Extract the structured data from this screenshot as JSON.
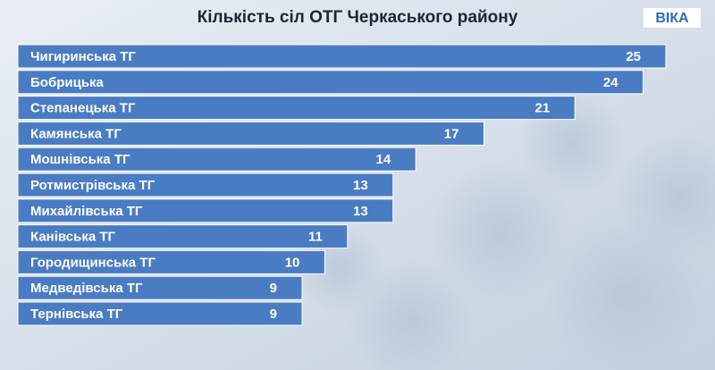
{
  "chart_data": {
    "type": "barh",
    "title": "Кількість сіл ОТГ Черкаського району",
    "logo": "ВІКА",
    "categories": [
      "Чигиринська ТГ",
      "Бобрицька",
      "Степанецька ТГ",
      "Камянська ТГ",
      "Мошнівська ТГ",
      "Ротмистрівська ТГ",
      "Михайлівська ТГ",
      "Канівська ТГ",
      "Городищинська ТГ",
      "Медведівська ТГ",
      "Тернівська ТГ"
    ],
    "values": [
      25,
      24,
      21,
      17,
      14,
      13,
      13,
      11,
      10,
      9,
      9
    ],
    "color": "#4a7cc3",
    "xlim": [
      -3.5,
      25
    ]
  }
}
